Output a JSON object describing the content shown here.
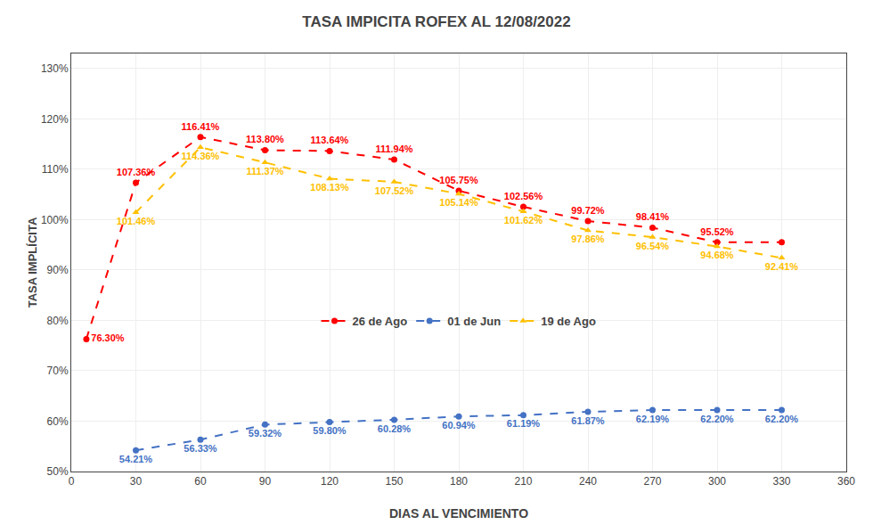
{
  "chart_data": {
    "type": "line",
    "title": "TASA IMPICITA ROFEX AL 12/08/2022",
    "xlabel": "DIAS AL VENCIMIENTO",
    "ylabel": "TASA IMPLÍCITA",
    "xlim": [
      0,
      360
    ],
    "xticks": [
      0,
      30,
      60,
      90,
      120,
      150,
      180,
      210,
      240,
      270,
      300,
      330,
      360
    ],
    "ylim": [
      0.5,
      1.33
    ],
    "yticks": [
      {
        "value": 0.5,
        "label": "50%"
      },
      {
        "value": 0.6,
        "label": "60%"
      },
      {
        "value": 0.7,
        "label": "70%"
      },
      {
        "value": 0.8,
        "label": "80%"
      },
      {
        "value": 0.9,
        "label": "90%"
      },
      {
        "value": 1.0,
        "label": "100%"
      },
      {
        "value": 1.1,
        "label": "110%"
      },
      {
        "value": 1.2,
        "label": "120%"
      },
      {
        "value": 1.3,
        "label": "130%"
      }
    ],
    "grid": true,
    "legend": "center",
    "data_labels": true,
    "series": [
      {
        "name": "26 de Ago",
        "color": "#FF0000",
        "marker": "circle",
        "line_style": "dashed",
        "x": [
          7,
          30,
          60,
          90,
          120,
          150,
          180,
          210,
          240,
          270,
          300,
          330
        ],
        "values": [
          0.763,
          1.0736,
          1.1641,
          1.138,
          1.1364,
          1.1194,
          1.0575,
          1.0256,
          0.9972,
          0.9841,
          0.9552,
          0.9552
        ],
        "value_labels": [
          "76.30%",
          "107.36%",
          "116.41%",
          "113.80%",
          "113.64%",
          "111.94%",
          "105.75%",
          "102.56%",
          "99.72%",
          "98.41%",
          "95.52%",
          null
        ]
      },
      {
        "name": "01 de Jun",
        "color": "#4472C4",
        "marker": "circle",
        "line_style": "dashed",
        "x": [
          30,
          60,
          90,
          120,
          150,
          180,
          210,
          240,
          270,
          300,
          330
        ],
        "values": [
          0.5421,
          0.5633,
          0.5932,
          0.598,
          0.6028,
          0.6094,
          0.6119,
          0.6187,
          0.6219,
          0.622,
          0.622
        ],
        "value_labels": [
          "54.21%",
          "56.33%",
          "59.32%",
          "59.80%",
          "60.28%",
          "60.94%",
          "61.19%",
          "61.87%",
          "62.19%",
          "62.20%",
          "62.20%"
        ]
      },
      {
        "name": "19 de Ago",
        "color": "#FFC000",
        "marker": "triangle",
        "line_style": "dashed",
        "x": [
          30,
          60,
          90,
          120,
          150,
          180,
          210,
          240,
          270,
          300,
          330
        ],
        "values": [
          1.0146,
          1.1436,
          1.1137,
          1.0813,
          1.0752,
          1.0514,
          1.0162,
          0.9786,
          0.9654,
          0.9468,
          0.9241
        ],
        "value_labels": [
          "101.46%",
          "114.36%",
          "111.37%",
          "108.13%",
          "107.52%",
          "105.14%",
          "101.62%",
          "97.86%",
          "96.54%",
          "94.68%",
          "92.41%"
        ]
      }
    ]
  }
}
